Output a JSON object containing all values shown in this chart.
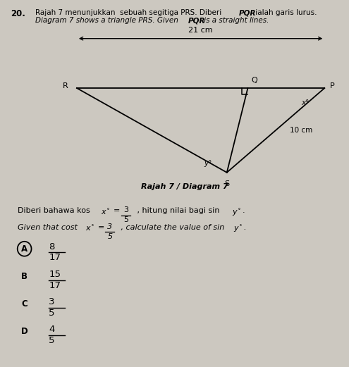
{
  "bg_color": "#ccc8c0",
  "col": "black",
  "label_21cm": "21 cm",
  "label_10cm": "10 cm",
  "label_R": "R",
  "label_Q": "Q",
  "label_P": "P",
  "label_S": "S",
  "label_x": "x°",
  "label_y": "y°",
  "diagram_label": "Rajah 7 / Diagram 7",
  "R": [
    0.22,
    0.76
  ],
  "Q": [
    0.71,
    0.76
  ],
  "P": [
    0.93,
    0.76
  ],
  "S": [
    0.65,
    0.53
  ],
  "options": [
    {
      "label": "A",
      "num": "8",
      "den": "17",
      "circled": true
    },
    {
      "label": "B",
      "num": "15",
      "den": "17",
      "circled": false
    },
    {
      "label": "C",
      "num": "3",
      "den": "5",
      "circled": false
    },
    {
      "label": "D",
      "num": "4",
      "den": "5",
      "circled": false
    }
  ]
}
